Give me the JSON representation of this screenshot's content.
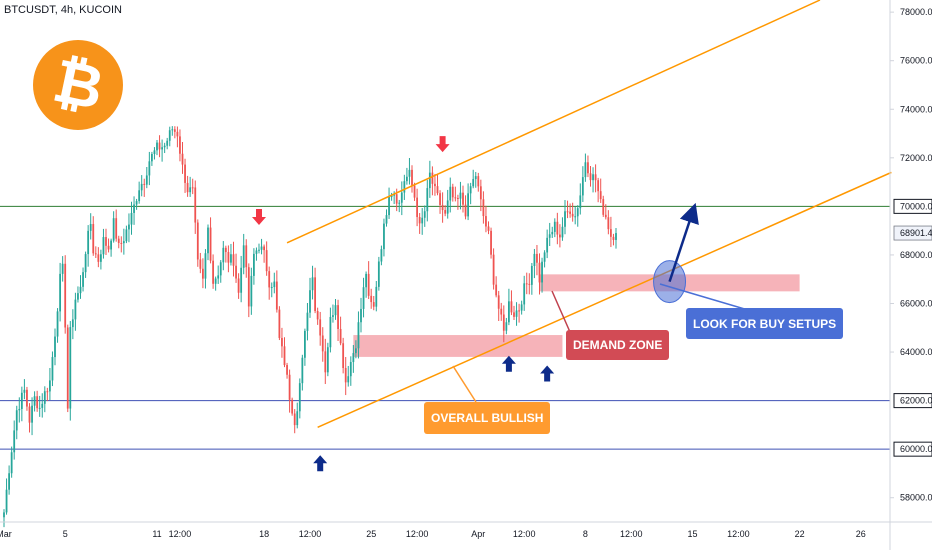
{
  "symbol_title": "BTCUSDT, 4h, KUCOIN",
  "colors": {
    "up": "#26a69a",
    "down": "#ef5350",
    "channel": "#ff9800",
    "demand_zone": "#f4a6ad",
    "green_line": "#2e7d32",
    "blue_line": "#3f51b5",
    "callout_orange": "#ff9b2f",
    "callout_red": "#d24b55",
    "callout_blue": "#4a6fd6",
    "arrow_red": "#f23645",
    "arrow_navy": "#0d2b8a",
    "logo": "#f7931a"
  },
  "logo": {
    "icon": "bitcoin-logo",
    "glyph": "₿"
  },
  "price_axis": {
    "ticks": [
      "78000.0",
      "76000.0",
      "74000.0",
      "72000.0",
      "68000.0",
      "66000.0",
      "64000.0",
      "58000.0"
    ],
    "highlighted": [
      {
        "label": "70000.0",
        "value": 70000,
        "style": "green"
      },
      {
        "label": "62000.0",
        "value": 62000,
        "style": "blue"
      },
      {
        "label": "60000.0",
        "value": 60000,
        "style": "blue"
      }
    ],
    "last_price": {
      "label": "68901.4",
      "value": 68901.4
    }
  },
  "time_axis": {
    "labels": [
      {
        "text": "Mar",
        "bar": 0
      },
      {
        "text": "5",
        "bar": 24
      },
      {
        "text": "11",
        "bar": 60
      },
      {
        "text": "12:00",
        "bar": 69
      },
      {
        "text": "18",
        "bar": 102
      },
      {
        "text": "12:00",
        "bar": 120
      },
      {
        "text": "25",
        "bar": 144
      },
      {
        "text": "12:00",
        "bar": 162
      },
      {
        "text": "Apr",
        "bar": 186
      },
      {
        "text": "12:00",
        "bar": 204
      },
      {
        "text": "8",
        "bar": 228
      },
      {
        "text": "12:00",
        "bar": 246
      },
      {
        "text": "15",
        "bar": 270
      },
      {
        "text": "12:00",
        "bar": 288
      },
      {
        "text": "22",
        "bar": 312
      },
      {
        "text": "26",
        "bar": 336
      }
    ]
  },
  "annotations": {
    "overall_bullish": "OVERALL BULLISH",
    "demand_zone": "DEMAND ZONE",
    "look_for_buy": "LOOK FOR BUY SETUPS"
  },
  "chart_data": {
    "type": "candlestick",
    "symbol": "BTCUSDT",
    "interval": "4h",
    "exchange": "KUCOIN",
    "ylim": [
      57000,
      78500
    ],
    "x_range_bars": [
      0,
      348
    ],
    "close_anchors": [
      [
        0,
        57400
      ],
      [
        2,
        59200
      ],
      [
        5,
        61600
      ],
      [
        8,
        62400
      ],
      [
        10,
        61200
      ],
      [
        12,
        62100
      ],
      [
        14,
        61700
      ],
      [
        16,
        62300
      ],
      [
        18,
        62800
      ],
      [
        20,
        64800
      ],
      [
        22,
        67000
      ],
      [
        23,
        67400
      ],
      [
        24,
        65200
      ],
      [
        25,
        61700
      ],
      [
        26,
        64800
      ],
      [
        28,
        66200
      ],
      [
        30,
        66600
      ],
      [
        32,
        68200
      ],
      [
        34,
        69300
      ],
      [
        35,
        68200
      ],
      [
        37,
        67800
      ],
      [
        39,
        68600
      ],
      [
        41,
        68300
      ],
      [
        43,
        69300
      ],
      [
        45,
        68300
      ],
      [
        47,
        68700
      ],
      [
        50,
        69600
      ],
      [
        53,
        70800
      ],
      [
        55,
        71100
      ],
      [
        57,
        71900
      ],
      [
        60,
        72400
      ],
      [
        63,
        72500
      ],
      [
        66,
        73200
      ],
      [
        68,
        73000
      ],
      [
        70,
        71600
      ],
      [
        72,
        70700
      ],
      [
        74,
        70600
      ],
      [
        76,
        67600
      ],
      [
        78,
        66900
      ],
      [
        80,
        69100
      ],
      [
        82,
        66900
      ],
      [
        84,
        67300
      ],
      [
        86,
        68200
      ],
      [
        88,
        67800
      ],
      [
        90,
        67800
      ],
      [
        92,
        66400
      ],
      [
        94,
        68600
      ],
      [
        96,
        65900
      ],
      [
        98,
        68000
      ],
      [
        100,
        68400
      ],
      [
        102,
        68000
      ],
      [
        104,
        66900
      ],
      [
        106,
        66800
      ],
      [
        108,
        64500
      ],
      [
        110,
        63600
      ],
      [
        112,
        62200
      ],
      [
        114,
        61200
      ],
      [
        115,
        61800
      ],
      [
        117,
        63600
      ],
      [
        119,
        65800
      ],
      [
        121,
        67300
      ],
      [
        122,
        65800
      ],
      [
        124,
        64900
      ],
      [
        126,
        63300
      ],
      [
        128,
        65300
      ],
      [
        130,
        66100
      ],
      [
        132,
        64300
      ],
      [
        134,
        62800
      ],
      [
        136,
        63600
      ],
      [
        138,
        64400
      ],
      [
        140,
        65800
      ],
      [
        142,
        67300
      ],
      [
        143,
        66100
      ],
      [
        145,
        65800
      ],
      [
        147,
        67800
      ],
      [
        149,
        69100
      ],
      [
        151,
        70600
      ],
      [
        153,
        70600
      ],
      [
        155,
        70100
      ],
      [
        157,
        71100
      ],
      [
        159,
        71300
      ],
      [
        161,
        70400
      ],
      [
        163,
        69100
      ],
      [
        165,
        69800
      ],
      [
        167,
        71300
      ],
      [
        169,
        70600
      ],
      [
        171,
        70100
      ],
      [
        173,
        69600
      ],
      [
        175,
        70600
      ],
      [
        177,
        70100
      ],
      [
        179,
        70400
      ],
      [
        181,
        69800
      ],
      [
        183,
        70800
      ],
      [
        185,
        71300
      ],
      [
        186,
        70700
      ],
      [
        188,
        69600
      ],
      [
        190,
        68800
      ],
      [
        192,
        67000
      ],
      [
        194,
        65800
      ],
      [
        196,
        64800
      ],
      [
        198,
        66000
      ],
      [
        200,
        65600
      ],
      [
        202,
        65800
      ],
      [
        204,
        66600
      ],
      [
        206,
        67000
      ],
      [
        208,
        68200
      ],
      [
        210,
        67000
      ],
      [
        212,
        68200
      ],
      [
        214,
        68800
      ],
      [
        216,
        69200
      ],
      [
        218,
        68800
      ],
      [
        220,
        69600
      ],
      [
        222,
        69900
      ],
      [
        224,
        69600
      ],
      [
        226,
        70500
      ],
      [
        228,
        71900
      ],
      [
        230,
        71300
      ],
      [
        232,
        71100
      ],
      [
        234,
        70100
      ],
      [
        236,
        69600
      ],
      [
        238,
        68800
      ],
      [
        240,
        68901
      ]
    ],
    "horizontal_lines": [
      {
        "value": 70000,
        "label": "70000.0"
      },
      {
        "value": 62000,
        "label": "62000.0"
      },
      {
        "value": 60000,
        "label": "60000.0"
      }
    ],
    "channel_lines": [
      {
        "from": [
          111,
          68500
        ],
        "to": [
          320,
          78500
        ]
      },
      {
        "from": [
          123,
          60900
        ],
        "to": [
          348,
          71400
        ]
      }
    ],
    "demand_zones": [
      {
        "bar_from": 137,
        "bar_to": 219,
        "low": 63800,
        "high": 64700
      },
      {
        "bar_from": 210,
        "bar_to": 312,
        "low": 66500,
        "high": 67200
      }
    ],
    "sell_arrows_bars": [
      [
        100,
        69400
      ],
      [
        172,
        72400
      ]
    ],
    "buy_arrows_bars": [
      [
        124,
        59500
      ],
      [
        213,
        63200
      ],
      [
        198,
        63600
      ]
    ],
    "projection": {
      "from": [
        261,
        66900
      ],
      "to": [
        270,
        70000
      ]
    },
    "last_price": 68901.4
  }
}
